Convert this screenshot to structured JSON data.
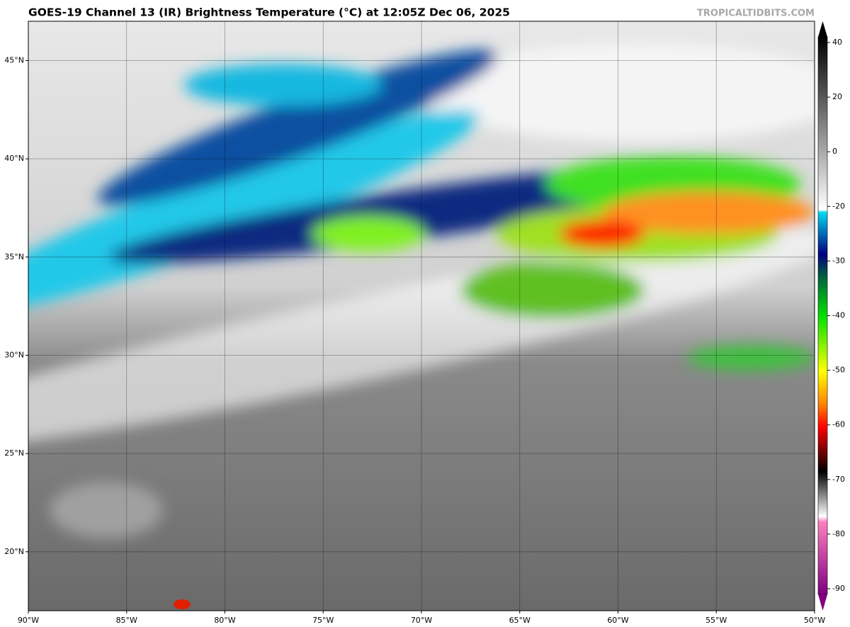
{
  "map": {
    "title": "GOES-19 Channel 13 (IR) Brightness Temperature (°C) at 12:05Z Dec 06, 2025",
    "credit": "TROPICALTIDBITS.COM",
    "xlim": [
      -90,
      -50
    ],
    "ylim": [
      17,
      47
    ],
    "xticks": [
      {
        "value": -90,
        "label": "90°W"
      },
      {
        "value": -85,
        "label": "85°W"
      },
      {
        "value": -80,
        "label": "80°W"
      },
      {
        "value": -75,
        "label": "75°W"
      },
      {
        "value": -70,
        "label": "70°W"
      },
      {
        "value": -65,
        "label": "65°W"
      },
      {
        "value": -60,
        "label": "60°W"
      },
      {
        "value": -55,
        "label": "55°W"
      },
      {
        "value": -50,
        "label": "50°W"
      }
    ],
    "yticks": [
      {
        "value": 20,
        "label": "20°N"
      },
      {
        "value": 25,
        "label": "25°N"
      },
      {
        "value": 30,
        "label": "30°N"
      },
      {
        "value": 35,
        "label": "35°N"
      },
      {
        "value": 40,
        "label": "40°N"
      },
      {
        "value": 45,
        "label": "45°N"
      }
    ],
    "colorbar_ticks": [
      40,
      20,
      0,
      -20,
      -30,
      -40,
      -50,
      -60,
      -70,
      -80,
      -90
    ]
  }
}
